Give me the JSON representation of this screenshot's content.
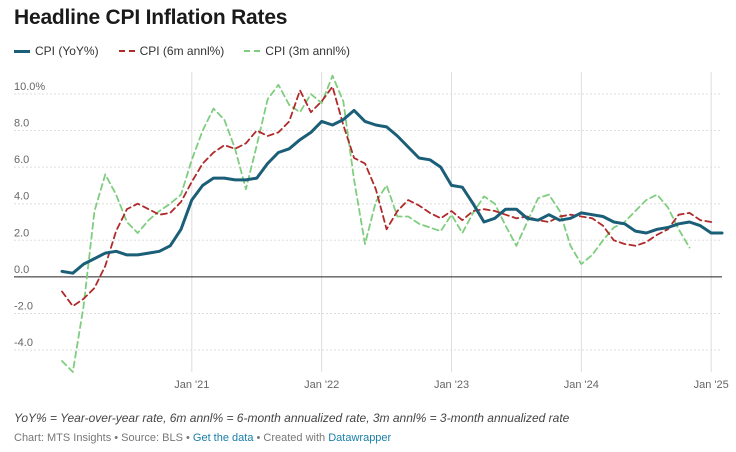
{
  "title": "Headline CPI Inflation Rates",
  "note": "YoY% = Year-over-year rate, 6m annl% = 6-month annualized rate, 3m annl% = 3-month annualized rate",
  "footer": {
    "prefix": "Chart: MTS Insights • Source: BLS •",
    "get_data": "Get the data",
    "created": "• Created with",
    "datawrapper": "Datawrapper"
  },
  "colors": {
    "yoy": "#1b5e78",
    "six": "#b02a2a",
    "three": "#7fcd7f",
    "zero": "#222222",
    "grid": "#dddddd"
  },
  "chart_data": {
    "type": "line",
    "x_labels": [
      "Jan '21",
      "Jan '22",
      "Jan '23",
      "Jan '24",
      "Jan '25"
    ],
    "x_label_month_index": [
      12,
      24,
      36,
      48,
      60
    ],
    "y_ticks": [
      "-4.0",
      "-2.0",
      "0.0",
      "2.0",
      "4.0",
      "6.0",
      "8.0",
      "10.0%"
    ],
    "y_tick_values": [
      -4,
      -2,
      0,
      2,
      4,
      6,
      8,
      10
    ],
    "ylim": [
      -5.2,
      11.2
    ],
    "xlim": [
      0,
      61
    ],
    "x_first": "2020-01",
    "x_step": "1 month",
    "series": [
      {
        "name": "CPI (YoY%)",
        "style": "solid",
        "values": [
          0.3,
          0.2,
          0.7,
          1.0,
          1.3,
          1.4,
          1.2,
          1.2,
          1.3,
          1.4,
          1.7,
          2.6,
          4.2,
          5.0,
          5.4,
          5.4,
          5.3,
          5.3,
          5.4,
          6.2,
          6.8,
          7.0,
          7.5,
          7.9,
          8.5,
          8.3,
          8.6,
          9.1,
          8.5,
          8.3,
          8.2,
          7.7,
          7.1,
          6.5,
          6.4,
          6.0,
          5.0,
          4.9,
          4.0,
          3.0,
          3.2,
          3.7,
          3.7,
          3.2,
          3.1,
          3.4,
          3.1,
          3.2,
          3.5,
          3.4,
          3.3,
          3.0,
          2.9,
          2.5,
          2.4,
          2.6,
          2.7,
          2.9,
          3.0,
          2.8,
          2.4,
          2.4
        ]
      },
      {
        "name": "CPI (6m annl%)",
        "style": "dashed",
        "values": [
          -0.8,
          -1.6,
          -1.2,
          -0.6,
          0.6,
          2.5,
          3.7,
          4.0,
          3.7,
          3.4,
          3.5,
          4.1,
          5.2,
          6.2,
          6.8,
          7.2,
          7.0,
          7.3,
          8.0,
          7.7,
          7.9,
          8.5,
          10.2,
          9.0,
          9.6,
          10.4,
          8.3,
          6.5,
          6.2,
          4.8,
          2.6,
          3.6,
          4.2,
          3.9,
          3.5,
          3.2,
          3.6,
          3.1,
          3.6,
          3.7,
          3.6,
          3.4,
          3.2,
          3.3,
          3.1,
          3.0,
          3.3,
          3.4,
          3.3,
          3.2,
          2.8,
          2.0,
          1.8,
          1.7,
          1.9,
          2.3,
          2.6,
          3.4,
          3.5,
          3.1,
          3.0
        ]
      },
      {
        "name": "CPI (3m annl%)",
        "style": "dashed",
        "values": [
          -4.6,
          -5.2,
          -1.6,
          3.6,
          5.6,
          4.5,
          3.0,
          2.4,
          3.1,
          3.6,
          4.0,
          4.5,
          6.4,
          8.0,
          9.2,
          8.6,
          7.0,
          4.8,
          7.2,
          9.7,
          10.5,
          9.4,
          9.0,
          10.0,
          9.5,
          11.0,
          9.6,
          5.3,
          1.8,
          4.1,
          5.0,
          3.3,
          3.3,
          2.9,
          2.7,
          2.5,
          3.4,
          2.4,
          3.5,
          4.4,
          4.0,
          2.8,
          1.7,
          3.0,
          4.3,
          4.5,
          3.6,
          1.7,
          0.7,
          1.2,
          2.0,
          2.7,
          3.0,
          3.6,
          4.2,
          4.5,
          3.8,
          2.6,
          1.6
        ]
      }
    ]
  }
}
